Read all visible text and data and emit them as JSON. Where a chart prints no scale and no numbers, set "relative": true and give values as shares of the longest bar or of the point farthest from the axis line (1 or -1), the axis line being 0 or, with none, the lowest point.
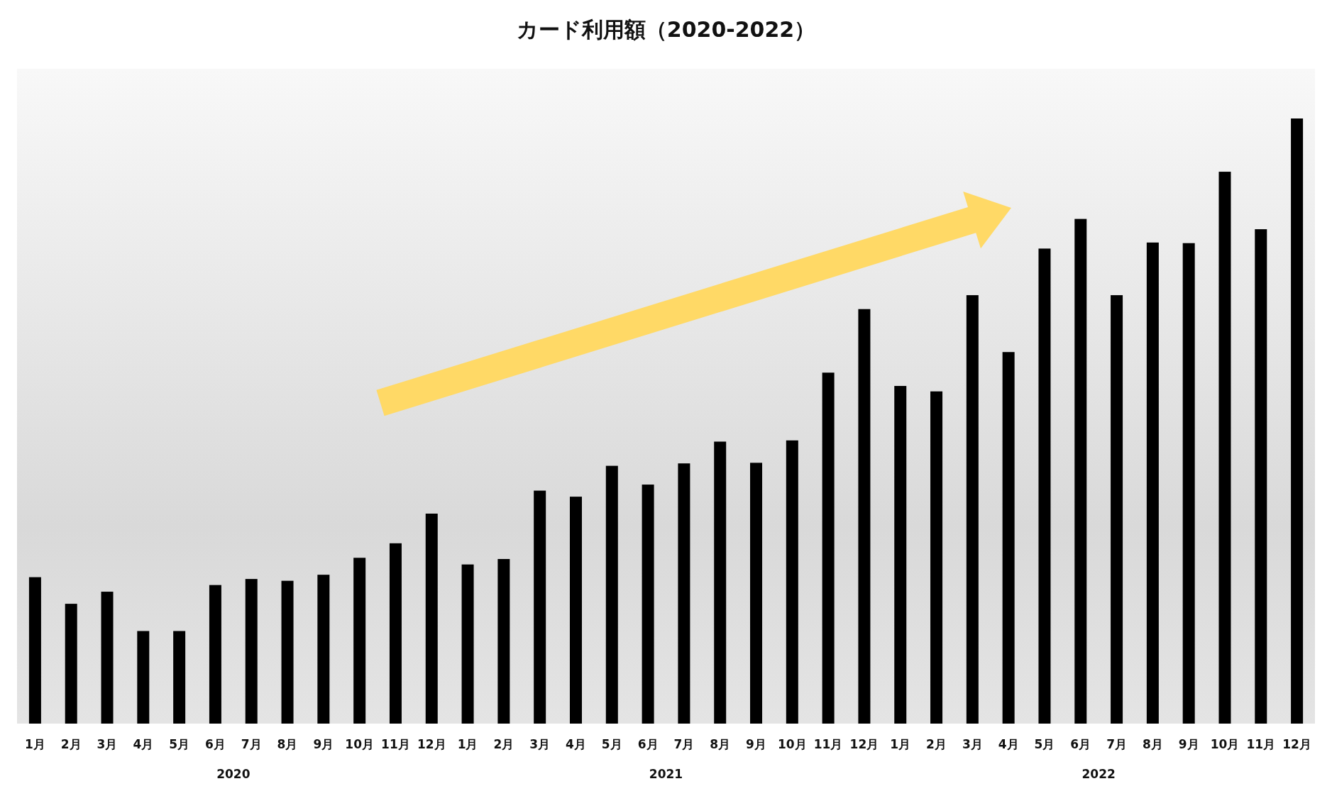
{
  "chart_data": {
    "type": "bar",
    "title": "カード利用額（2020-2022）",
    "relative": true,
    "color": "#000000",
    "categories": [
      "1月",
      "2月",
      "3月",
      "4月",
      "5月",
      "6月",
      "7月",
      "8月",
      "9月",
      "10月",
      "11月",
      "12月",
      "1月",
      "2月",
      "3月",
      "4月",
      "5月",
      "6月",
      "7月",
      "8月",
      "9月",
      "10月",
      "11月",
      "12月",
      "1月",
      "2月",
      "3月",
      "4月",
      "5月",
      "6月",
      "7月",
      "8月",
      "9月",
      "10月",
      "11月",
      "12月"
    ],
    "values": [
      0.242,
      0.198,
      0.218,
      0.153,
      0.153,
      0.229,
      0.239,
      0.236,
      0.246,
      0.274,
      0.298,
      0.347,
      0.263,
      0.272,
      0.385,
      0.375,
      0.426,
      0.395,
      0.43,
      0.466,
      0.431,
      0.468,
      0.58,
      0.685,
      0.558,
      0.549,
      0.708,
      0.614,
      0.785,
      0.834,
      0.708,
      0.795,
      0.794,
      0.912,
      0.817,
      1
    ],
    "annotations": [
      "2020",
      "2021",
      "2022"
    ]
  }
}
